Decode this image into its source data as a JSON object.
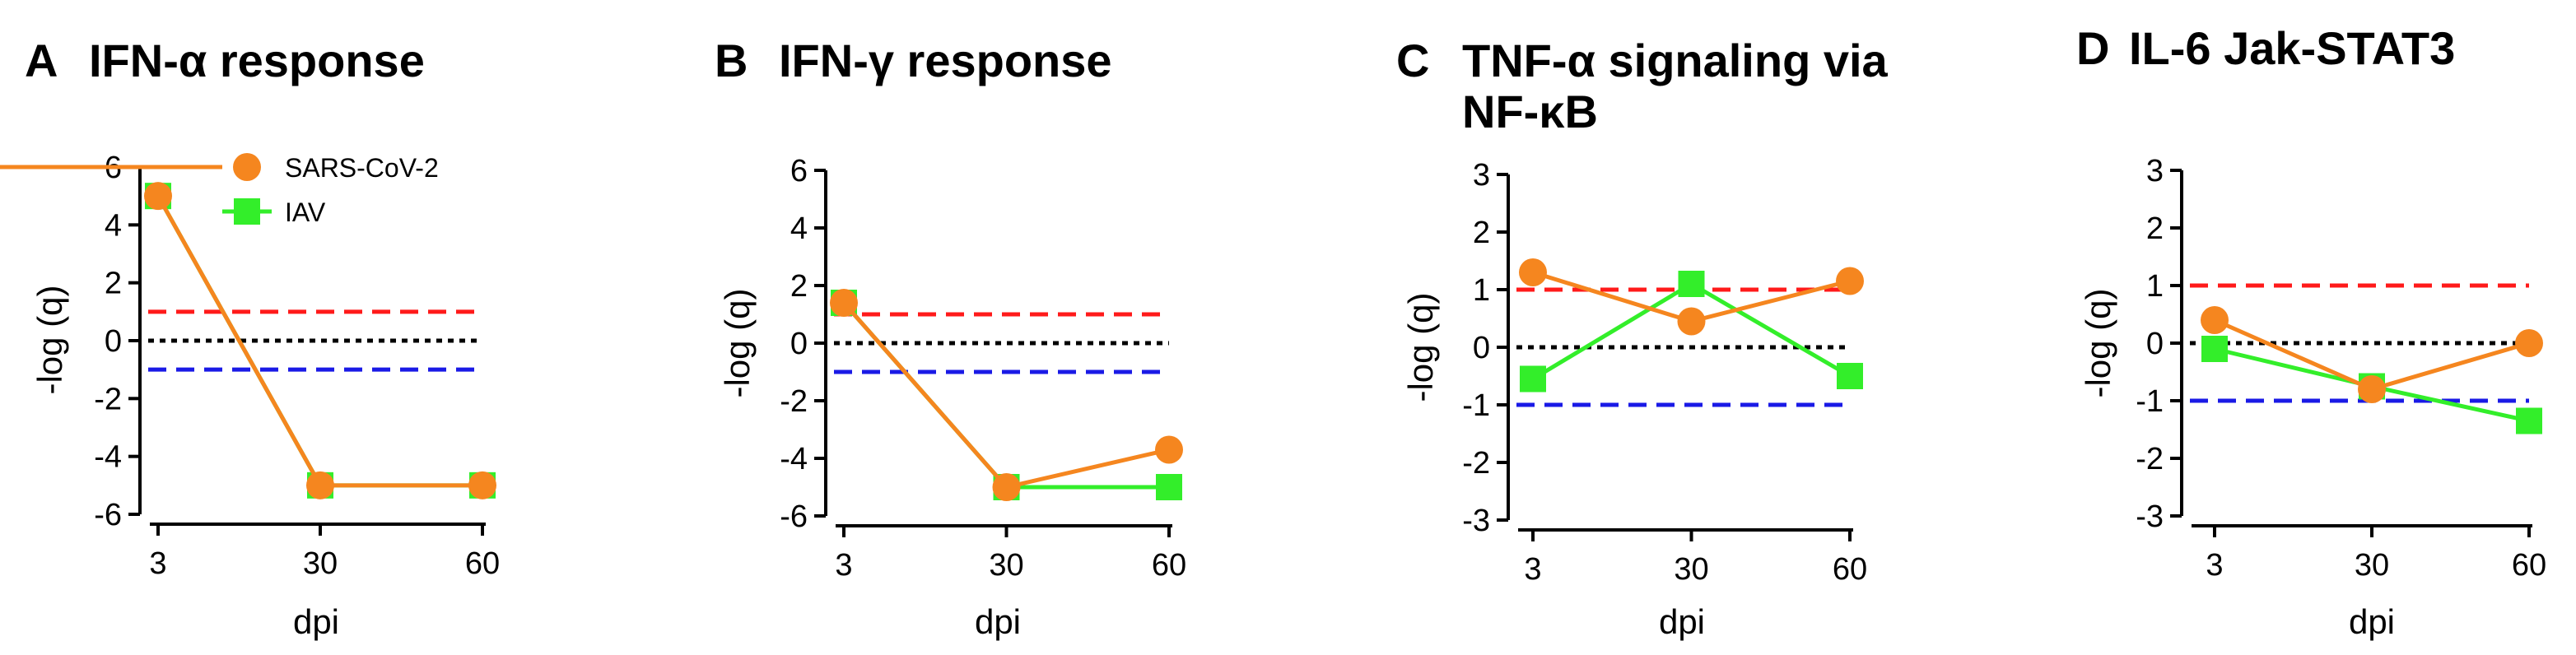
{
  "colors": {
    "sars": "#f5861f",
    "iav": "#33ee2a",
    "upper_threshold": "#ff1a1a",
    "lower_threshold": "#1a1ae6",
    "zero_line": "#000000"
  },
  "legend": {
    "sars_label": "SARS-CoV-2",
    "iav_label": "IAV"
  },
  "chart_data": [
    {
      "letter": "A",
      "title": "IFN-α response",
      "type": "line",
      "xlabel": "dpi",
      "ylabel": "-log (q)",
      "x": [
        3,
        30,
        60
      ],
      "x_ticks": [
        "3",
        "30",
        "60"
      ],
      "ylim": [
        -6,
        6
      ],
      "y_ticks": [
        "6",
        "4",
        "2",
        "0",
        "-2",
        "-4",
        "-6"
      ],
      "reference_lines": [
        1,
        0,
        -1
      ],
      "series": [
        {
          "name": "SARS-CoV-2",
          "values": [
            5.0,
            -5.0,
            -5.0
          ]
        },
        {
          "name": "IAV",
          "values": [
            5.0,
            -5.0,
            -5.0
          ]
        }
      ]
    },
    {
      "letter": "B",
      "title": "IFN-γ response",
      "type": "line",
      "xlabel": "dpi",
      "ylabel": "-log (q)",
      "x": [
        3,
        30,
        60
      ],
      "x_ticks": [
        "3",
        "30",
        "60"
      ],
      "ylim": [
        -6,
        6
      ],
      "y_ticks": [
        "6",
        "4",
        "2",
        "0",
        "-2",
        "-4",
        "-6"
      ],
      "reference_lines": [
        1,
        0,
        -1
      ],
      "series": [
        {
          "name": "SARS-CoV-2",
          "values": [
            1.4,
            -5.0,
            -3.7
          ]
        },
        {
          "name": "IAV",
          "values": [
            1.4,
            -5.0,
            -5.0
          ]
        }
      ]
    },
    {
      "letter": "C",
      "title": "TNF-α signaling via",
      "title_line2": "NF-κB",
      "type": "line",
      "xlabel": "dpi",
      "ylabel": "-log (q)",
      "x": [
        3,
        30,
        60
      ],
      "x_ticks": [
        "3",
        "30",
        "60"
      ],
      "ylim": [
        -3,
        3
      ],
      "y_ticks": [
        "3",
        "2",
        "1",
        "0",
        "-1",
        "-2",
        "-3"
      ],
      "reference_lines": [
        1,
        0,
        -1
      ],
      "series": [
        {
          "name": "SARS-CoV-2",
          "values": [
            1.3,
            0.45,
            1.15
          ]
        },
        {
          "name": "IAV",
          "values": [
            -0.55,
            1.1,
            -0.5
          ]
        }
      ]
    },
    {
      "letter": "D",
      "title": "IL-6 Jak-STAT3",
      "type": "line",
      "xlabel": "dpi",
      "ylabel": "-log (q)",
      "x": [
        3,
        30,
        60
      ],
      "x_ticks": [
        "3",
        "30",
        "60"
      ],
      "ylim": [
        -3,
        3
      ],
      "y_ticks": [
        "3",
        "2",
        "1",
        "0",
        "-1",
        "-2",
        "-3"
      ],
      "reference_lines": [
        1,
        0,
        -1
      ],
      "series": [
        {
          "name": "SARS-CoV-2",
          "values": [
            0.4,
            -0.8,
            0.0
          ]
        },
        {
          "name": "IAV",
          "values": [
            -0.1,
            -0.75,
            -1.35
          ]
        }
      ]
    }
  ]
}
